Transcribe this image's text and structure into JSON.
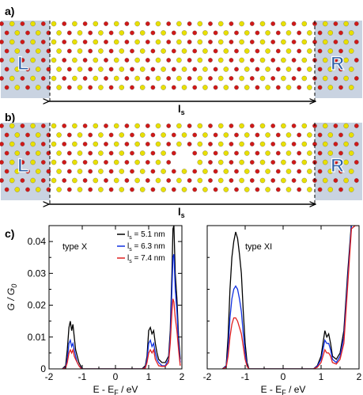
{
  "panels": {
    "a": {
      "label": "a)",
      "lead_left": "L",
      "lead_right": "R",
      "length_label": "l",
      "length_sub": "s"
    },
    "b": {
      "label": "b)",
      "lead_left": "L",
      "lead_right": "R",
      "length_label": "l",
      "length_sub": "s"
    },
    "c": {
      "label": "c)"
    }
  },
  "colors": {
    "lead_bg": "#c9d3e1",
    "lead_letter": "#2d5fa6",
    "oxygen": "#d01818",
    "metal": "#e8e000",
    "bond": "#c77a10",
    "black": "#000000",
    "blue": "#1030e0",
    "red": "#e02020"
  },
  "chart_data": [
    {
      "type": "line",
      "title": "type X",
      "xlabel": "E - E_F / eV",
      "ylabel": "G / G_0",
      "xlim": [
        -2,
        2
      ],
      "ylim": [
        0,
        0.045
      ],
      "xticks": [
        "-2",
        "-1",
        "0",
        "1",
        "2"
      ],
      "yticks": [
        "0",
        "0.01",
        "0.02",
        "0.03",
        "0.04"
      ],
      "legend_position": "top-right",
      "legend": [
        "l_s = 5.1 nm",
        "l_s = 6.3 nm",
        "l_s = 7.4 nm"
      ],
      "series": [
        {
          "name": "l_s = 5.1 nm",
          "color": "#000000",
          "x": [
            -1.6,
            -1.5,
            -1.45,
            -1.4,
            -1.36,
            -1.32,
            -1.28,
            -1.24,
            -1.2,
            -1.15,
            -1.1,
            -1.05,
            -1.0,
            0.8,
            0.9,
            0.95,
            1.0,
            1.05,
            1.1,
            1.15,
            1.2,
            1.25,
            1.3,
            1.4,
            1.5,
            1.6,
            1.65,
            1.7,
            1.73,
            1.76,
            1.8,
            1.85,
            1.9,
            1.95
          ],
          "y": [
            0,
            0.001,
            0.006,
            0.013,
            0.015,
            0.012,
            0.014,
            0.01,
            0.006,
            0.004,
            0.002,
            0.001,
            0,
            0,
            0.001,
            0.004,
            0.012,
            0.013,
            0.011,
            0.012,
            0.008,
            0.005,
            0.003,
            0.002,
            0.002,
            0.004,
            0.012,
            0.03,
            0.044,
            0.045,
            0.03,
            0.022,
            0.01,
            0.003
          ]
        },
        {
          "name": "l_s = 6.3 nm",
          "color": "#1030e0",
          "x": [
            -1.6,
            -1.5,
            -1.45,
            -1.4,
            -1.36,
            -1.32,
            -1.28,
            -1.24,
            -1.2,
            -1.15,
            -1.1,
            -1.05,
            -1.0,
            0.8,
            0.9,
            0.95,
            1.0,
            1.05,
            1.1,
            1.15,
            1.2,
            1.25,
            1.3,
            1.4,
            1.5,
            1.6,
            1.65,
            1.7,
            1.73,
            1.76,
            1.8,
            1.85,
            1.9,
            1.95
          ],
          "y": [
            0,
            0.0005,
            0.003,
            0.008,
            0.009,
            0.007,
            0.008,
            0.006,
            0.004,
            0.002,
            0.001,
            0.0005,
            0,
            0,
            0.0005,
            0.003,
            0.008,
            0.009,
            0.007,
            0.008,
            0.005,
            0.003,
            0.002,
            0.001,
            0.001,
            0.003,
            0.01,
            0.025,
            0.035,
            0.036,
            0.025,
            0.018,
            0.008,
            0.002
          ]
        },
        {
          "name": "l_s = 7.4 nm",
          "color": "#e02020",
          "x": [
            -1.6,
            -1.5,
            -1.45,
            -1.4,
            -1.36,
            -1.32,
            -1.28,
            -1.24,
            -1.2,
            -1.15,
            -1.1,
            -1.05,
            -1.0,
            0.8,
            0.9,
            0.95,
            1.0,
            1.05,
            1.1,
            1.15,
            1.2,
            1.25,
            1.3,
            1.4,
            1.5,
            1.6,
            1.65,
            1.7,
            1.73,
            1.76,
            1.8,
            1.85,
            1.9,
            1.95
          ],
          "y": [
            0,
            0.0003,
            0.002,
            0.005,
            0.006,
            0.005,
            0.006,
            0.004,
            0.003,
            0.002,
            0.001,
            0.0003,
            0,
            0,
            0.0003,
            0.002,
            0.005,
            0.006,
            0.005,
            0.006,
            0.003,
            0.002,
            0.001,
            0.0008,
            0.0008,
            0.002,
            0.008,
            0.018,
            0.022,
            0.021,
            0.016,
            0.012,
            0.006,
            0.001
          ]
        }
      ]
    },
    {
      "type": "line",
      "title": "type XI",
      "xlabel": "E - E_F / eV",
      "xlim": [
        -2,
        2
      ],
      "ylim": [
        0,
        0.045
      ],
      "xticks": [
        "-2",
        "-1",
        "0",
        "1",
        "2"
      ],
      "series": [
        {
          "name": "l_s = 5.1 nm",
          "color": "#000000",
          "x": [
            -1.6,
            -1.5,
            -1.45,
            -1.4,
            -1.35,
            -1.3,
            -1.25,
            -1.2,
            -1.15,
            -1.1,
            -1.05,
            -1.0,
            -0.95,
            -0.9,
            0.8,
            0.9,
            1.0,
            1.05,
            1.1,
            1.15,
            1.2,
            1.25,
            1.3,
            1.4,
            1.5,
            1.6,
            1.7,
            1.8,
            1.9,
            2.0
          ],
          "y": [
            0,
            0.001,
            0.01,
            0.025,
            0.035,
            0.04,
            0.043,
            0.041,
            0.036,
            0.03,
            0.018,
            0.008,
            0.002,
            0,
            0,
            0.001,
            0.004,
            0.008,
            0.012,
            0.01,
            0.011,
            0.008,
            0.004,
            0.003,
            0.005,
            0.012,
            0.03,
            0.046,
            0.046,
            0.046
          ]
        },
        {
          "name": "l_s = 6.3 nm",
          "color": "#1030e0",
          "x": [
            -1.6,
            -1.5,
            -1.45,
            -1.4,
            -1.35,
            -1.3,
            -1.25,
            -1.2,
            -1.15,
            -1.1,
            -1.05,
            -1.0,
            -0.95,
            -0.9,
            0.8,
            0.9,
            1.0,
            1.05,
            1.1,
            1.15,
            1.2,
            1.25,
            1.3,
            1.4,
            1.5,
            1.6,
            1.7,
            1.8,
            1.9,
            2.0
          ],
          "y": [
            0,
            0.0008,
            0.006,
            0.016,
            0.022,
            0.025,
            0.026,
            0.025,
            0.022,
            0.018,
            0.011,
            0.005,
            0.001,
            0,
            0,
            0.0008,
            0.003,
            0.006,
            0.009,
            0.008,
            0.008,
            0.006,
            0.003,
            0.002,
            0.004,
            0.01,
            0.028,
            0.045,
            0.046,
            0.046
          ]
        },
        {
          "name": "l_s = 7.4 nm",
          "color": "#e02020",
          "x": [
            -1.6,
            -1.5,
            -1.45,
            -1.4,
            -1.35,
            -1.3,
            -1.25,
            -1.2,
            -1.15,
            -1.1,
            -1.05,
            -1.0,
            -0.95,
            -0.9,
            0.8,
            0.9,
            1.0,
            1.05,
            1.1,
            1.15,
            1.2,
            1.25,
            1.3,
            1.4,
            1.5,
            1.6,
            1.7,
            1.8,
            1.9,
            2.0
          ],
          "y": [
            0,
            0.0005,
            0.004,
            0.01,
            0.014,
            0.016,
            0.016,
            0.015,
            0.013,
            0.011,
            0.007,
            0.003,
            0.0008,
            0,
            0,
            0.0005,
            0.002,
            0.004,
            0.006,
            0.005,
            0.005,
            0.004,
            0.002,
            0.0015,
            0.003,
            0.008,
            0.026,
            0.044,
            0.045,
            0.045
          ]
        }
      ]
    }
  ]
}
